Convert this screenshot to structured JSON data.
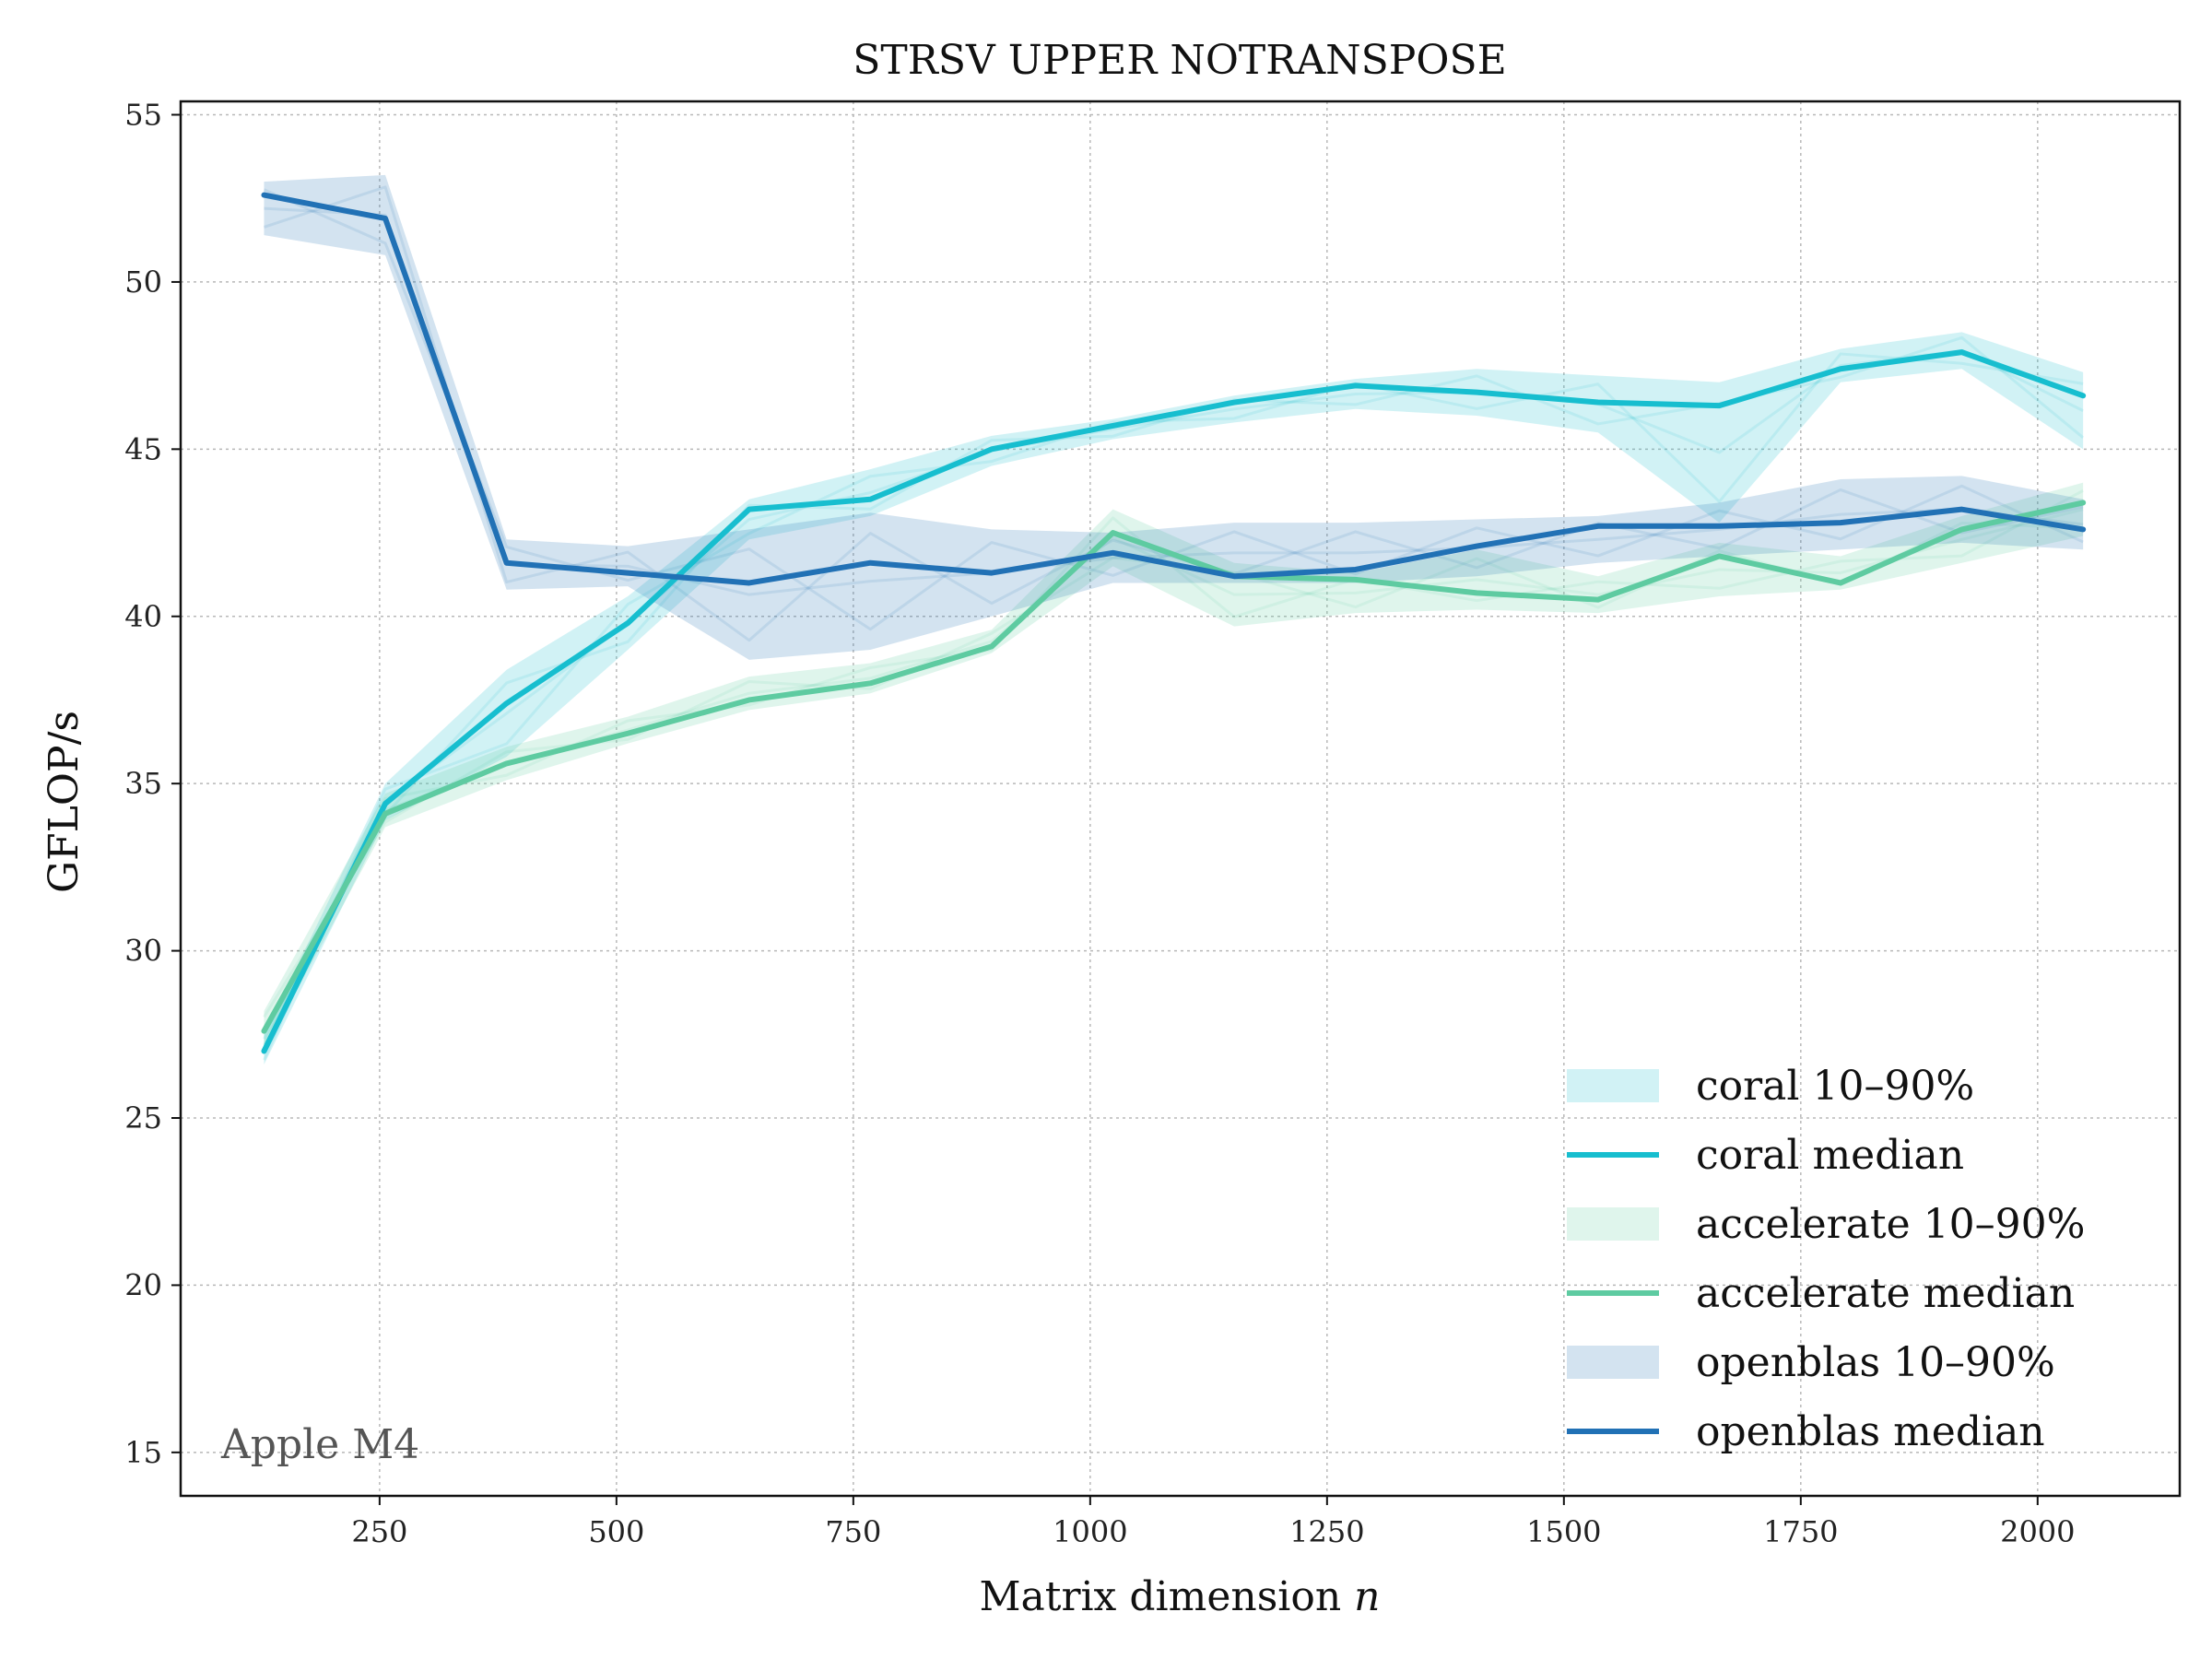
{
  "chart_data": {
    "type": "line",
    "title": "STRSV UPPER NOTRANSPOSE",
    "xlabel": "Matrix dimension n",
    "ylabel": "GFLOP/s",
    "xlim": [
      40,
      2150
    ],
    "ylim": [
      13.7,
      55.4
    ],
    "xticks": [
      250,
      500,
      750,
      1000,
      1250,
      1500,
      1750,
      2000
    ],
    "yticks": [
      15,
      20,
      25,
      30,
      35,
      40,
      45,
      50,
      55
    ],
    "grid": true,
    "legend_position": "lower right",
    "annotation": "Apple M4",
    "x": [
      128,
      256,
      384,
      512,
      640,
      768,
      896,
      1024,
      1152,
      1280,
      1408,
      1536,
      1664,
      1792,
      1920,
      2048
    ],
    "series": [
      {
        "name": "coral",
        "color": "#17becf",
        "median": [
          27.0,
          34.4,
          37.4,
          39.8,
          43.2,
          43.5,
          45.0,
          45.7,
          46.4,
          46.9,
          46.7,
          46.4,
          46.3,
          47.4,
          47.9,
          46.6
        ],
        "p10": [
          26.6,
          33.9,
          35.8,
          39.0,
          42.3,
          43.0,
          44.5,
          45.3,
          45.8,
          46.2,
          46.0,
          45.5,
          42.8,
          47.0,
          47.4,
          45.0
        ],
        "p90": [
          27.5,
          35.0,
          38.4,
          40.6,
          43.5,
          44.4,
          45.4,
          45.9,
          46.6,
          47.1,
          47.4,
          47.2,
          47.0,
          48.0,
          48.5,
          47.3
        ],
        "band_label": "coral 10–90%",
        "median_label": "coral median"
      },
      {
        "name": "accelerate",
        "color": "#5ecba1",
        "median": [
          27.6,
          34.1,
          35.6,
          36.5,
          37.5,
          38.0,
          39.1,
          42.5,
          41.2,
          41.1,
          40.7,
          40.5,
          41.8,
          41.0,
          42.6,
          43.4
        ],
        "p10": [
          27.0,
          33.7,
          35.1,
          36.2,
          37.2,
          37.7,
          38.9,
          41.5,
          39.7,
          40.1,
          40.2,
          40.1,
          40.6,
          40.8,
          41.6,
          42.4
        ],
        "p90": [
          28.2,
          34.7,
          36.1,
          37.0,
          38.2,
          38.6,
          39.6,
          43.2,
          41.6,
          41.3,
          42.0,
          41.2,
          42.2,
          41.8,
          43.0,
          44.0
        ],
        "band_label": "accelerate 10–90%",
        "median_label": "accelerate median"
      },
      {
        "name": "openblas",
        "color": "#2171b5",
        "median": [
          52.6,
          51.9,
          41.6,
          41.3,
          41.0,
          41.6,
          41.3,
          41.9,
          41.2,
          41.4,
          42.1,
          42.7,
          42.7,
          42.8,
          43.2,
          42.6
        ],
        "p10": [
          51.4,
          50.8,
          40.8,
          40.9,
          38.7,
          39.0,
          40.0,
          41.0,
          41.0,
          41.0,
          41.2,
          41.6,
          41.8,
          42.0,
          42.2,
          42.0
        ],
        "p90": [
          53.0,
          53.2,
          42.3,
          42.1,
          42.6,
          43.1,
          42.6,
          42.5,
          42.8,
          42.8,
          42.9,
          43.0,
          43.4,
          44.1,
          44.2,
          43.5
        ],
        "band_label": "openblas 10–90%",
        "median_label": "openblas median"
      }
    ]
  }
}
